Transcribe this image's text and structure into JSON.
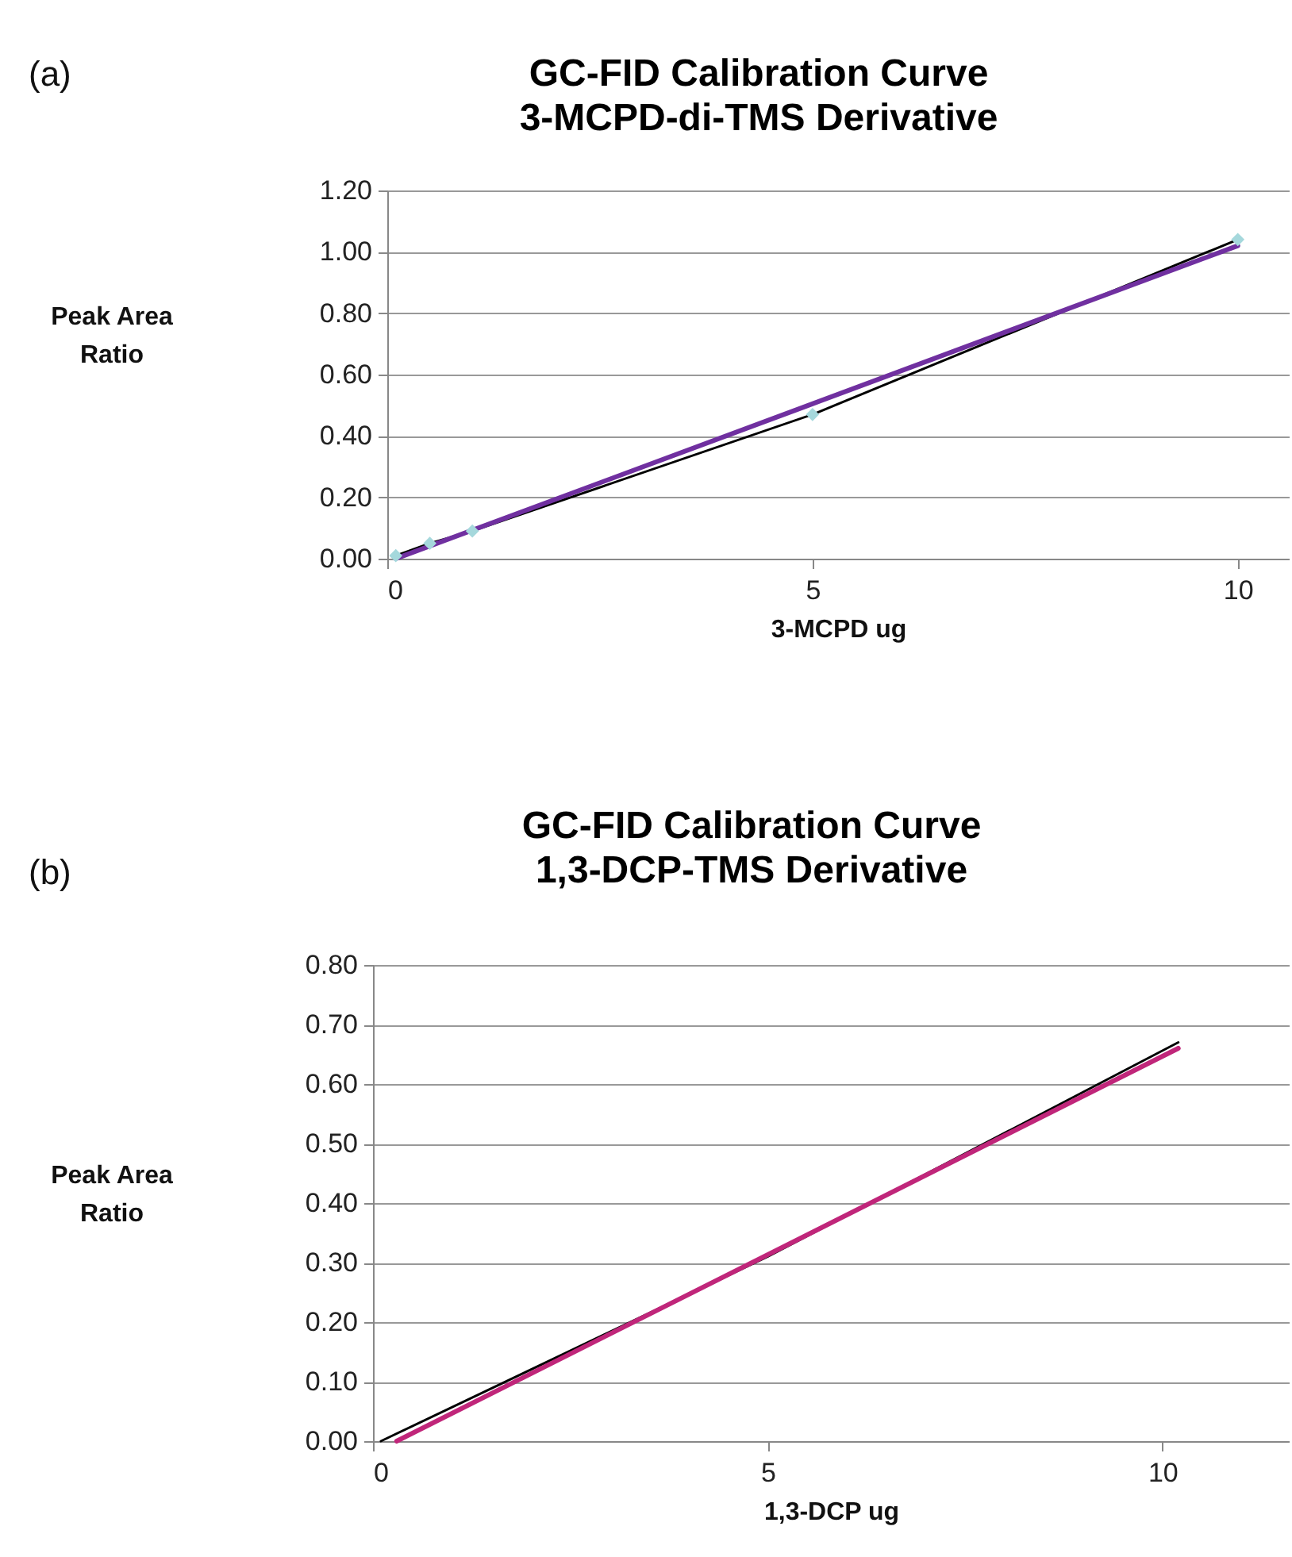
{
  "chart_data": [
    {
      "type": "line",
      "title": "GC-FID Calibration Curve",
      "subtitle": "3-MCPD-di-TMS Derivative",
      "xlabel": "3-MCPD ug",
      "ylabel": "Peak Area Ratio",
      "annotations": [
        "(a)"
      ],
      "xlim": [
        0,
        10.6
      ],
      "xticks": [
        0,
        5,
        10
      ],
      "ylim": [
        0,
        1.2
      ],
      "yticks": [
        {
          "value": 0,
          "label": "0.00"
        },
        {
          "value": 0.2,
          "label": "0.20"
        },
        {
          "value": 0.4,
          "label": "0.40"
        },
        {
          "value": 0.6,
          "label": "0.60"
        },
        {
          "value": 0.8,
          "label": "0.80"
        },
        {
          "value": 1.0,
          "label": "1.00"
        },
        {
          "value": 1.2,
          "label": "1.20"
        }
      ],
      "grid": "y",
      "series": [
        {
          "type": "line",
          "color": "#000000",
          "x": [
            0.1,
            0.5,
            1,
            5,
            10
          ],
          "values": [
            0.01,
            0.05,
            0.09,
            0.47,
            1.04
          ]
        },
        {
          "type": "scatter",
          "color": "#a5d8dc",
          "marker": "diamond",
          "x": [
            0.1,
            0.5,
            1,
            5,
            10
          ],
          "values": [
            0.01,
            0.05,
            0.09,
            0.47,
            1.04
          ]
        },
        {
          "type": "line",
          "color": "#7030a0",
          "x": [
            0.1,
            10
          ],
          "values": [
            0.0,
            1.02
          ]
        }
      ]
    },
    {
      "type": "line",
      "title": "GC-FID Calibration Curve",
      "subtitle": "1,3-DCP-TMS Derivative",
      "xlabel": "1,3-DCP ug",
      "ylabel": "Peak Area Ratio",
      "annotations": [
        "(b)"
      ],
      "xlim": [
        0,
        11.6
      ],
      "xticks": [
        0,
        5,
        10
      ],
      "ylim": [
        0,
        0.8
      ],
      "yticks": [
        {
          "value": 0,
          "label": "0.00"
        },
        {
          "value": 0.1,
          "label": "0.10"
        },
        {
          "value": 0.2,
          "label": "0.20"
        },
        {
          "value": 0.3,
          "label": "0.30"
        },
        {
          "value": 0.4,
          "label": "0.40"
        },
        {
          "value": 0.5,
          "label": "0.50"
        },
        {
          "value": 0.6,
          "label": "0.60"
        },
        {
          "value": 0.7,
          "label": "0.70"
        },
        {
          "value": 0.8,
          "label": "0.80"
        }
      ],
      "grid": "y",
      "series": [
        {
          "type": "line",
          "color": "#000000",
          "x": [
            0.1,
            5,
            10.2
          ],
          "values": [
            0.0,
            0.31,
            0.67
          ]
        },
        {
          "type": "line",
          "color": "#c0267a",
          "x": [
            0.3,
            10.2
          ],
          "values": [
            0.0,
            0.66
          ]
        }
      ]
    }
  ]
}
